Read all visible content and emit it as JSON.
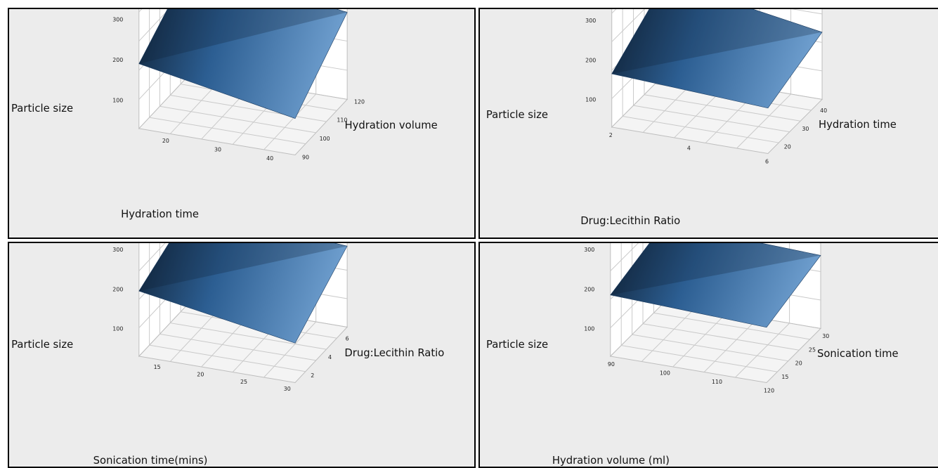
{
  "chart_data": [
    {
      "type": "surface",
      "zlabel": "Particle size",
      "xlabel": "Hydration time",
      "ylabel": "Hydration volume",
      "z_ticks": [
        "100",
        "200",
        "300"
      ],
      "x_ticks": [
        "20",
        "30",
        "40"
      ],
      "y_ticks": [
        "90",
        "100",
        "110",
        "120"
      ],
      "x_range": [
        15,
        45
      ],
      "y_range": [
        90,
        120
      ],
      "z_range": [
        100,
        300
      ],
      "surface": [
        {
          "x": 15,
          "y": 90,
          "z": 190
        },
        {
          "x": 15,
          "y": 120,
          "z": 300
        },
        {
          "x": 45,
          "y": 90,
          "z": 120
        },
        {
          "x": 45,
          "y": 120,
          "z": 245
        }
      ]
    },
    {
      "type": "surface",
      "zlabel": "Particle size",
      "xlabel": "Drug:Lecithin Ratio",
      "ylabel": "Hydration time",
      "z_ticks": [
        "100",
        "200",
        "300"
      ],
      "x_ticks": [
        "2",
        "4",
        "6"
      ],
      "y_ticks": [
        "20",
        "30",
        "40"
      ],
      "x_range": [
        2,
        6
      ],
      "y_range": [
        15,
        45
      ],
      "z_range": [
        100,
        300
      ],
      "surface": [
        {
          "x": 2,
          "y": 15,
          "z": 165
        },
        {
          "x": 2,
          "y": 45,
          "z": 265
        },
        {
          "x": 6,
          "y": 15,
          "z": 145
        },
        {
          "x": 6,
          "y": 45,
          "z": 200
        }
      ]
    },
    {
      "type": "surface",
      "zlabel": "Particle size",
      "xlabel": "Sonication time(mins)",
      "ylabel": "Drug:Lecithin Ratio",
      "z_ticks": [
        "100",
        "200",
        "300"
      ],
      "x_ticks": [
        "15",
        "20",
        "25",
        "30"
      ],
      "y_ticks": [
        "2",
        "4",
        "6"
      ],
      "x_range": [
        13,
        31
      ],
      "y_range": [
        1,
        7
      ],
      "z_range": [
        100,
        300
      ],
      "surface": [
        {
          "x": 13,
          "y": 1,
          "z": 195
        },
        {
          "x": 13,
          "y": 7,
          "z": 265
        },
        {
          "x": 31,
          "y": 1,
          "z": 130
        },
        {
          "x": 31,
          "y": 7,
          "z": 235
        }
      ]
    },
    {
      "type": "surface",
      "zlabel": "Particle size",
      "xlabel": "Hydration volume (ml)",
      "ylabel": "Sonication time",
      "z_ticks": [
        "100",
        "200",
        "300"
      ],
      "x_ticks": [
        "90",
        "100",
        "110",
        "120"
      ],
      "y_ticks": [
        "15",
        "20",
        "25",
        "30"
      ],
      "x_range": [
        90,
        120
      ],
      "y_range": [
        12,
        32
      ],
      "z_range": [
        100,
        300
      ],
      "surface": [
        {
          "x": 90,
          "y": 12,
          "z": 185
        },
        {
          "x": 90,
          "y": 32,
          "z": 230
        },
        {
          "x": 120,
          "y": 12,
          "z": 170
        },
        {
          "x": 120,
          "y": 32,
          "z": 215
        }
      ]
    }
  ]
}
